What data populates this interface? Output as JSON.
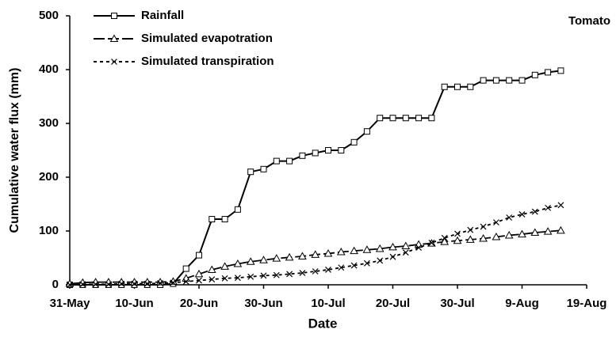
{
  "chart_data": {
    "type": "line",
    "annotation": "Tomato",
    "xlabel": "Date",
    "ylabel": "Cumulative water flux (mm)",
    "x": [
      "31-May",
      "2-Jun",
      "4-Jun",
      "6-Jun",
      "8-Jun",
      "10-Jun",
      "12-Jun",
      "14-Jun",
      "16-Jun",
      "18-Jun",
      "20-Jun",
      "22-Jun",
      "24-Jun",
      "26-Jun",
      "28-Jun",
      "30-Jun",
      "2-Jul",
      "4-Jul",
      "6-Jul",
      "8-Jul",
      "10-Jul",
      "12-Jul",
      "14-Jul",
      "16-Jul",
      "18-Jul",
      "20-Jul",
      "22-Jul",
      "24-Jul",
      "26-Jul",
      "28-Jul",
      "30-Jul",
      "1-Aug",
      "3-Aug",
      "5-Aug",
      "7-Aug",
      "9-Aug",
      "11-Aug",
      "13-Aug",
      "15-Aug"
    ],
    "series": [
      {
        "name": "Rainfall",
        "color": "#000000",
        "marker": "square",
        "dash": "solid",
        "values": [
          0,
          0,
          0,
          0,
          0,
          0,
          0,
          0,
          2,
          30,
          55,
          122,
          122,
          140,
          210,
          215,
          230,
          230,
          240,
          245,
          250,
          250,
          265,
          285,
          310,
          310,
          310,
          310,
          310,
          368,
          368,
          368,
          380,
          380,
          380,
          380,
          390,
          395,
          398
        ]
      },
      {
        "name": "Simulated evapotration",
        "color": "#000000",
        "marker": "triangle",
        "dash": "longdash",
        "values": [
          2,
          4,
          5,
          5,
          5,
          5,
          5,
          5,
          6,
          12,
          20,
          28,
          34,
          39,
          43,
          46,
          49,
          51,
          53,
          56,
          58,
          61,
          63,
          65,
          67,
          70,
          72,
          75,
          77,
          80,
          82,
          84,
          86,
          89,
          92,
          94,
          97,
          99,
          101
        ]
      },
      {
        "name": "Simulated transpiration",
        "color": "#000000",
        "marker": "cross",
        "dash": "dotted",
        "values": [
          0,
          1,
          1,
          1,
          2,
          2,
          2,
          3,
          4,
          6,
          8,
          10,
          12,
          13,
          15,
          17,
          18,
          20,
          22,
          25,
          28,
          32,
          36,
          40,
          45,
          52,
          60,
          69,
          78,
          87,
          95,
          102,
          108,
          116,
          125,
          131,
          136,
          143,
          148
        ]
      }
    ],
    "xlim": [
      "31-May",
      "19-Aug"
    ],
    "xticks": [
      "31-May",
      "10-Jun",
      "20-Jun",
      "30-Jun",
      "10-Jul",
      "20-Jul",
      "30-Jul",
      "9-Aug",
      "19-Aug"
    ],
    "ylim": [
      0,
      500
    ],
    "yticks": [
      0,
      100,
      200,
      300,
      400,
      500
    ]
  }
}
